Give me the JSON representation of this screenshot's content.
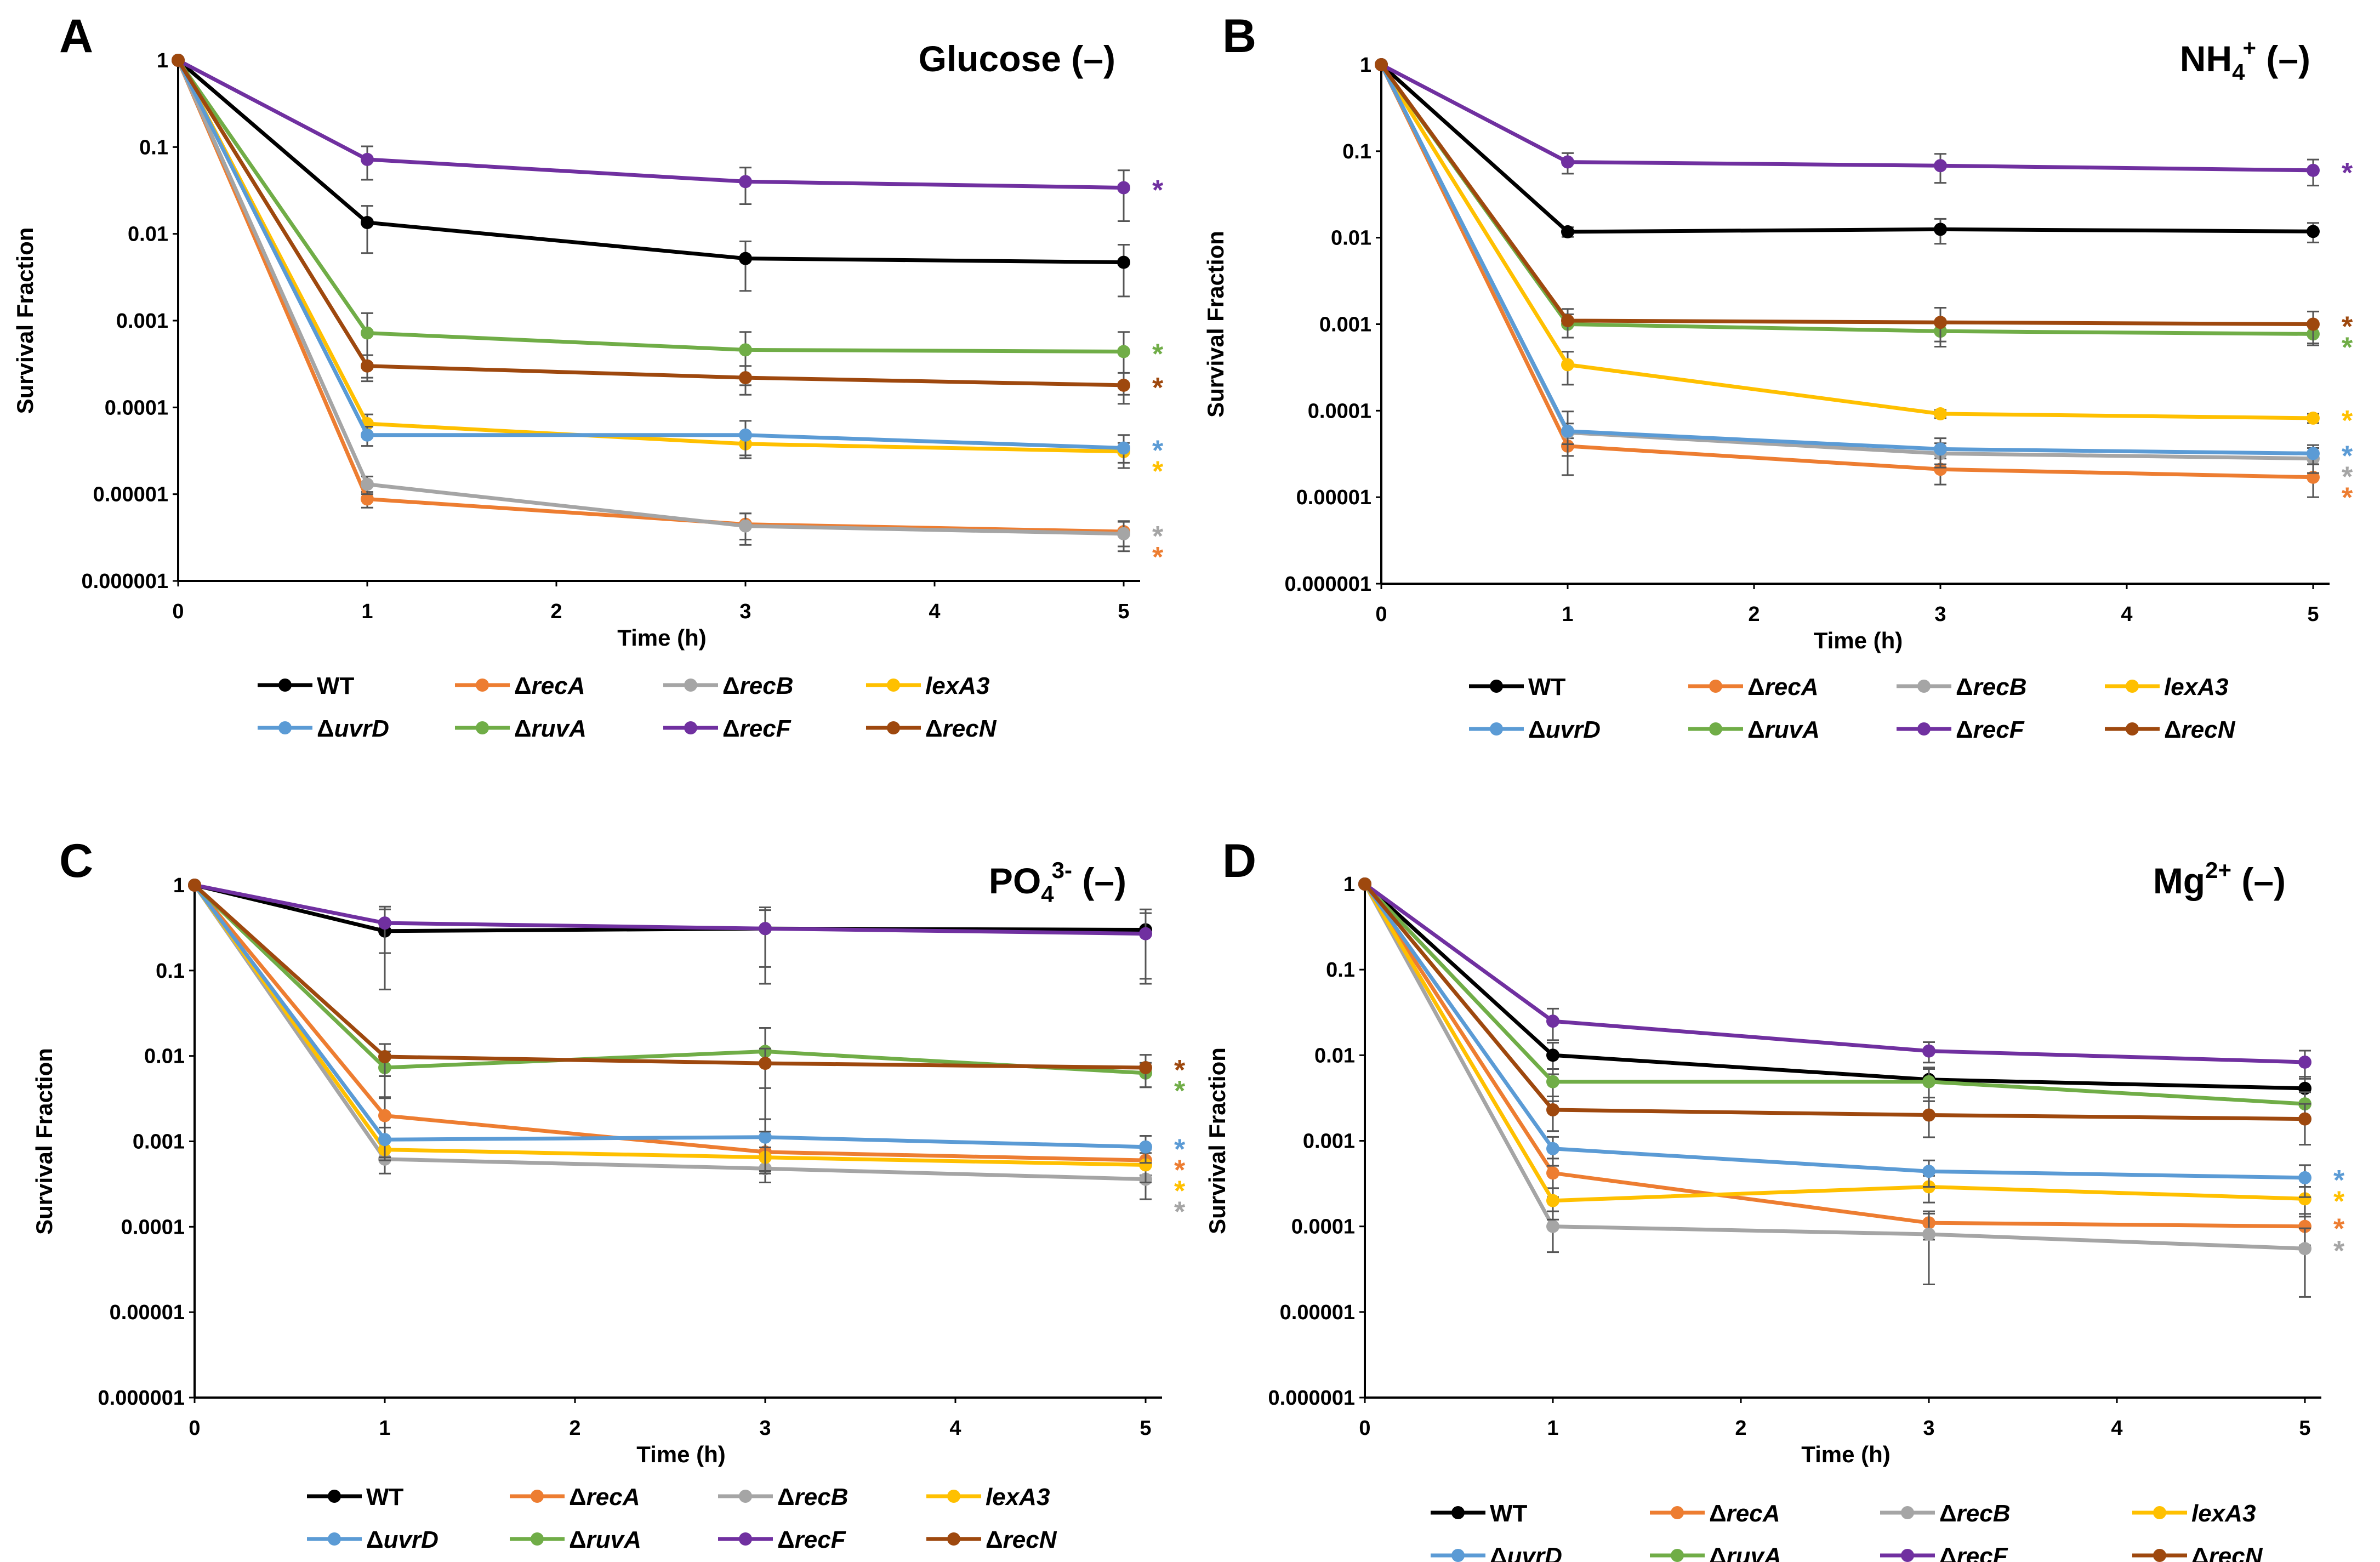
{
  "legend_entries": [
    {
      "key": "WT",
      "prefix": "",
      "name": "WT",
      "italic": false,
      "color": "#000000"
    },
    {
      "key": "recA",
      "prefix": "Δ",
      "name": "recA",
      "italic": true,
      "color": "#ED7D31"
    },
    {
      "key": "recB",
      "prefix": "Δ",
      "name": "recB",
      "italic": true,
      "color": "#A5A5A5"
    },
    {
      "key": "lexA3",
      "prefix": "",
      "name": "lexA3",
      "italic": true,
      "color": "#FFC000"
    },
    {
      "key": "uvrD",
      "prefix": "Δ",
      "name": "uvrD",
      "italic": true,
      "color": "#5B9BD5"
    },
    {
      "key": "ruvA",
      "prefix": "Δ",
      "name": "ruvA",
      "italic": true,
      "color": "#70AD47"
    },
    {
      "key": "recF",
      "prefix": "Δ",
      "name": "recF",
      "italic": true,
      "color": "#7030A0"
    },
    {
      "key": "recN",
      "prefix": "Δ",
      "name": "recN",
      "italic": true,
      "color": "#9E480E"
    }
  ],
  "star_char": "*",
  "chart_data": [
    {
      "panel": "A",
      "type": "line",
      "title": {
        "main": "Glucose",
        "sub": "",
        "sup": "",
        "suffix": " (–)"
      },
      "xlabel": "Time (h)",
      "ylabel": "Survival Fraction",
      "x_ticks": [
        "0",
        "1",
        "2",
        "3",
        "4",
        "5"
      ],
      "y_ticks": [
        "1",
        "0.1",
        "0.01",
        "0.001",
        "0.0001",
        "0.00001",
        "0.000001"
      ],
      "yscale": "log",
      "ylim": [
        1e-06,
        1
      ],
      "xlim": [
        0,
        5
      ],
      "x": [
        0,
        1,
        3,
        5
      ],
      "series": [
        {
          "name": "WT",
          "values": [
            1,
            0.0135,
            0.0052,
            0.0047
          ],
          "errors": [
            0,
            0.0075,
            0.003,
            0.0028
          ]
        },
        {
          "name": "ΔrecA",
          "values": [
            1,
            8.8e-06,
            4.5e-06,
            3.7e-06
          ],
          "errors": [
            0,
            1.8e-06,
            1.5e-06,
            1.2e-06
          ]
        },
        {
          "name": "ΔrecB",
          "values": [
            1,
            1.3e-05,
            4.3e-06,
            3.5e-06
          ],
          "errors": [
            0,
            3e-06,
            1.7e-06,
            1.3e-06
          ]
        },
        {
          "name": "lexA3",
          "values": [
            1,
            6.5e-05,
            3.8e-05,
            3.1e-05
          ],
          "errors": [
            0,
            1.8e-05,
            1e-05,
            8e-06
          ]
        },
        {
          "name": "ΔuvrD",
          "values": [
            1,
            4.8e-05,
            4.8e-05,
            3.4e-05
          ],
          "errors": [
            0,
            1.2e-05,
            2.2e-05,
            1.4e-05
          ]
        },
        {
          "name": "ΔruvA",
          "values": [
            1,
            0.00072,
            0.00046,
            0.00044
          ],
          "errors": [
            0,
            0.0005,
            0.00028,
            0.0003
          ]
        },
        {
          "name": "ΔrecF",
          "values": [
            1,
            0.072,
            0.04,
            0.034
          ],
          "errors": [
            0,
            0.03,
            0.018,
            0.02
          ]
        },
        {
          "name": "ΔrecN",
          "values": [
            1,
            0.0003,
            0.00022,
            0.00018
          ],
          "errors": [
            0,
            0.0001,
            8e-05,
            7e-05
          ]
        }
      ],
      "significance": [
        "ΔrecF",
        "ΔruvA",
        "ΔrecN",
        "ΔuvrD",
        "lexA3",
        "ΔrecB",
        "ΔrecA"
      ]
    },
    {
      "panel": "B",
      "type": "line",
      "title": {
        "main": "NH",
        "sub": "4",
        "sup": "+",
        "suffix": " (–)"
      },
      "xlabel": "Time (h)",
      "ylabel": "Survival Fraction",
      "x_ticks": [
        "0",
        "1",
        "2",
        "3",
        "4",
        "5"
      ],
      "y_ticks": [
        "1",
        "0.1",
        "0.01",
        "0.001",
        "0.0001",
        "0.00001",
        "0.000001"
      ],
      "yscale": "log",
      "ylim": [
        1e-06,
        1
      ],
      "xlim": [
        0,
        5
      ],
      "x": [
        0,
        1,
        3,
        5
      ],
      "series": [
        {
          "name": "WT",
          "values": [
            1,
            0.0117,
            0.0125,
            0.0118
          ],
          "errors": [
            0,
            0.0015,
            0.004,
            0.003
          ]
        },
        {
          "name": "ΔrecA",
          "values": [
            1,
            3.9e-05,
            2.1e-05,
            1.7e-05
          ],
          "errors": [
            0,
            9e-06,
            7e-06,
            7e-06
          ]
        },
        {
          "name": "ΔrecB",
          "values": [
            1,
            5.6e-05,
            3.2e-05,
            2.8e-05
          ],
          "errors": [
            0,
            1.5e-05,
            1e-05,
            9e-06
          ]
        },
        {
          "name": "lexA3",
          "values": [
            1,
            0.00034,
            9.2e-05,
            8.2e-05
          ],
          "errors": [
            0,
            0.00014,
            1e-05,
            1e-05
          ]
        },
        {
          "name": "ΔuvrD",
          "values": [
            1,
            5.8e-05,
            3.6e-05,
            3.2e-05
          ],
          "errors": [
            0,
            4e-05,
            1.2e-05,
            8e-06
          ]
        },
        {
          "name": "ΔruvA",
          "values": [
            1,
            0.001,
            0.00083,
            0.00077
          ],
          "errors": [
            0,
            0.0003,
            0.0002,
            0.0002
          ]
        },
        {
          "name": "ΔrecF",
          "values": [
            1,
            0.075,
            0.068,
            0.06
          ],
          "errors": [
            0,
            0.02,
            0.025,
            0.02
          ]
        },
        {
          "name": "ΔrecN",
          "values": [
            1,
            0.0011,
            0.00105,
            0.001
          ],
          "errors": [
            0,
            0.0004,
            0.0005,
            0.0004
          ]
        }
      ],
      "significance": [
        "ΔrecF",
        "ΔrecN",
        "ΔruvA",
        "lexA3",
        "ΔuvrD",
        "ΔrecB",
        "ΔrecA"
      ]
    },
    {
      "panel": "C",
      "type": "line",
      "title": {
        "main": "PO",
        "sub": "4",
        "sup": "3-",
        "suffix": " (–)"
      },
      "xlabel": "Time (h)",
      "ylabel": "Survival Fraction",
      "x_ticks": [
        "0",
        "1",
        "2",
        "3",
        "4",
        "5"
      ],
      "y_ticks": [
        "1",
        "0.1",
        "0.01",
        "0.001",
        "0.0001",
        "0.00001",
        "0.000001"
      ],
      "yscale": "log",
      "ylim": [
        1e-06,
        1
      ],
      "xlim": [
        0,
        5
      ],
      "x": [
        0,
        1,
        3,
        5
      ],
      "series": [
        {
          "name": "WT",
          "values": [
            1,
            0.29,
            0.31,
            0.3
          ],
          "errors": [
            0,
            0.23,
            0.24,
            0.22
          ]
        },
        {
          "name": "ΔrecA",
          "values": [
            1,
            0.002,
            0.00075,
            0.0006
          ],
          "errors": [
            0,
            0.0012,
            0.0003,
            0.0002
          ]
        },
        {
          "name": "ΔrecB",
          "values": [
            1,
            0.00062,
            0.00048,
            0.00036
          ],
          "errors": [
            0,
            0.0002,
            0.00015,
            0.00015
          ]
        },
        {
          "name": "lexA3",
          "values": [
            1,
            0.0008,
            0.00065,
            0.00053
          ],
          "errors": [
            0,
            0.0002,
            0.0002,
            0.0002
          ]
        },
        {
          "name": "ΔuvrD",
          "values": [
            1,
            0.00105,
            0.00112,
            0.00086
          ],
          "errors": [
            0,
            0.0004,
            0.0007,
            0.0003
          ]
        },
        {
          "name": "ΔruvA",
          "values": [
            1,
            0.0073,
            0.0113,
            0.0063
          ],
          "errors": [
            0,
            0.004,
            0.01,
            0.002
          ]
        },
        {
          "name": "ΔrecF",
          "values": [
            1,
            0.36,
            0.31,
            0.27
          ],
          "errors": [
            0,
            0.2,
            0.2,
            0.2
          ]
        },
        {
          "name": "ΔrecN",
          "values": [
            1,
            0.0098,
            0.0082,
            0.0073
          ],
          "errors": [
            0,
            0.004,
            0.004,
            0.003
          ]
        }
      ],
      "significance": [
        "ΔrecN",
        "ΔruvA",
        "ΔuvrD",
        "ΔrecA",
        "lexA3",
        "ΔrecB"
      ]
    },
    {
      "panel": "D",
      "type": "line",
      "title": {
        "main": "Mg",
        "sub": "",
        "sup": "2+",
        "suffix": " (–)"
      },
      "xlabel": "Time (h)",
      "ylabel": "Survival Fraction",
      "x_ticks": [
        "0",
        "1",
        "2",
        "3",
        "4",
        "5"
      ],
      "y_ticks": [
        "1",
        "0.1",
        "0.01",
        "0.001",
        "0.0001",
        "0.00001",
        "0.000001"
      ],
      "yscale": "log",
      "ylim": [
        1e-06,
        1
      ],
      "xlim": [
        0,
        5
      ],
      "x": [
        0,
        1,
        3,
        5
      ],
      "series": [
        {
          "name": "WT",
          "values": [
            1,
            0.01,
            0.0052,
            0.0041
          ],
          "errors": [
            0,
            0.004,
            0.002,
            0.0015
          ]
        },
        {
          "name": "ΔrecA",
          "values": [
            1,
            0.00042,
            0.00011,
            0.0001
          ],
          "errors": [
            0,
            0.0002,
            4e-05,
            4e-05
          ]
        },
        {
          "name": "ΔrecB",
          "values": [
            1,
            0.0001,
            8.1e-05,
            5.5e-05
          ],
          "errors": [
            0,
            5e-05,
            6e-05,
            4e-05
          ]
        },
        {
          "name": "lexA3",
          "values": [
            1,
            0.0002,
            0.00029,
            0.00021
          ],
          "errors": [
            0,
            8e-05,
            0.0001,
            8e-05
          ]
        },
        {
          "name": "ΔuvrD",
          "values": [
            1,
            0.00081,
            0.00044,
            0.00037
          ],
          "errors": [
            0,
            0.0003,
            0.00015,
            0.00015
          ]
        },
        {
          "name": "ΔruvA",
          "values": [
            1,
            0.0049,
            0.0049,
            0.0027
          ],
          "errors": [
            0,
            0.002,
            0.002,
            0.001
          ]
        },
        {
          "name": "ΔrecF",
          "values": [
            1,
            0.025,
            0.0112,
            0.0083
          ],
          "errors": [
            0,
            0.01,
            0.003,
            0.003
          ]
        },
        {
          "name": "ΔrecN",
          "values": [
            1,
            0.0023,
            0.002,
            0.0018
          ],
          "errors": [
            0,
            0.001,
            0.0009,
            0.0009
          ]
        }
      ],
      "significance": [
        "ΔuvrD",
        "lexA3",
        "ΔrecA",
        "ΔrecB"
      ]
    }
  ]
}
